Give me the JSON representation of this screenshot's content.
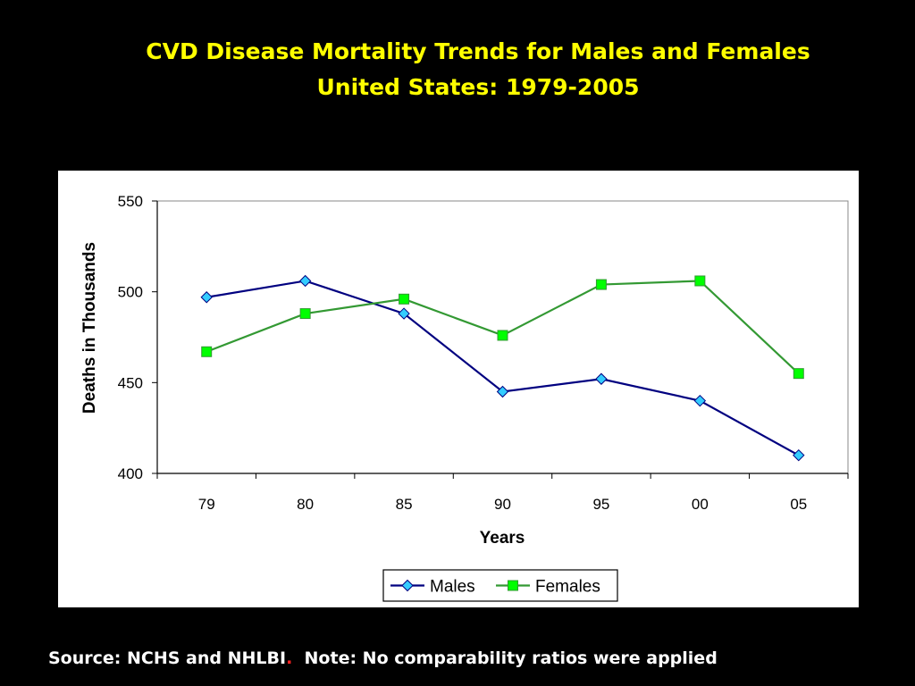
{
  "title": {
    "line1": "CVD Disease Mortality Trends for Males and Females",
    "line2": "United States: 1979-2005"
  },
  "source": {
    "part1": "Source: NCHS and NHLBI",
    "dot": ".",
    "part2": "  Note: No comparability ratios were applied"
  },
  "chart_data": {
    "type": "line",
    "categories": [
      "79",
      "80",
      "85",
      "90",
      "95",
      "00",
      "05"
    ],
    "xlabel": "Years",
    "ylabel": "Deaths in Thousands",
    "ylim": [
      400,
      550
    ],
    "yticks": [
      400,
      450,
      500,
      550
    ],
    "grid": false,
    "legend_position": "bottom",
    "series": [
      {
        "name": "Males",
        "color": "#000080",
        "marker": "diamond",
        "marker_fill": "#33ccff",
        "values": [
          497,
          506,
          488,
          445,
          452,
          440,
          410
        ]
      },
      {
        "name": "Females",
        "color": "#339933",
        "marker": "square",
        "marker_fill": "#00ff00",
        "values": [
          467,
          488,
          496,
          476,
          504,
          506,
          455
        ]
      }
    ]
  }
}
